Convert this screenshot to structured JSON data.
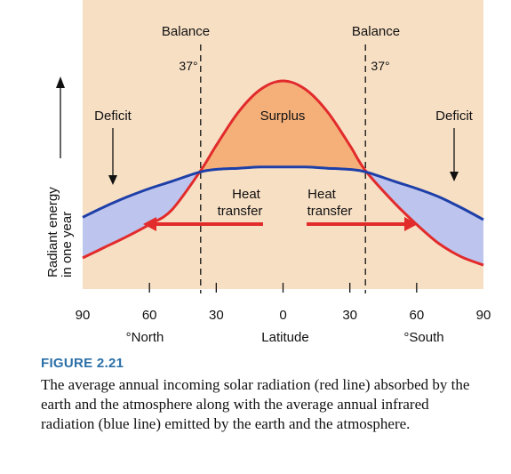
{
  "chart_data": {
    "type": "line",
    "x_axis": {
      "label": "Latitude",
      "tick_labels": [
        "90",
        "60",
        "30",
        "0",
        "30",
        "60",
        "90"
      ],
      "tick_values": [
        -90,
        -60,
        -30,
        0,
        30,
        60,
        90
      ],
      "direction_labels": [
        "°North",
        "°South"
      ]
    },
    "y_axis": {
      "label_line1": "Radiant energy",
      "label_line2": "in one year",
      "ticks": "none"
    },
    "series": [
      {
        "color": "#e22b2b",
        "x": [
          -90,
          -80,
          -70,
          -60,
          -50,
          -37,
          -30,
          -20,
          -10,
          0,
          10,
          20,
          30,
          37,
          50,
          60,
          70,
          80,
          90
        ],
        "y": [
          13,
          17.5,
          22,
          27,
          33,
          49.5,
          60,
          74,
          83.5,
          87,
          83.5,
          74,
          60,
          49.5,
          36,
          27,
          19,
          13.5,
          10
        ]
      },
      {
        "color": "#1e3fa8",
        "x": [
          -90,
          -80,
          -70,
          -60,
          -50,
          -37,
          -30,
          -20,
          -10,
          0,
          10,
          20,
          30,
          37,
          50,
          60,
          70,
          80,
          90
        ],
        "y": [
          30,
          34.5,
          38.5,
          42,
          45,
          49,
          50,
          50.5,
          51,
          51,
          51,
          50.5,
          50,
          49,
          45,
          42,
          38.5,
          34,
          29
        ]
      }
    ],
    "region_labels": {
      "balance_left": "Balance",
      "balance_right": "Balance",
      "lat_left": "37°",
      "lat_right": "37°",
      "deficit_left": "Deficit",
      "deficit_right": "Deficit",
      "surplus": "Surplus"
    },
    "balance_latitude": 37,
    "heat_transfer": {
      "left_line1": "Heat",
      "left_line2": "transfer",
      "right_line1": "Heat",
      "right_line2": "transfer"
    },
    "colors": {
      "background": "#f7dfc4",
      "surplus_fill": "#f5b07a",
      "deficit_fill": "#bdc5ee",
      "arrow": "#e22b2b"
    },
    "grid": false
  },
  "caption": {
    "figure_label": "FIGURE 2.21",
    "text": "The average annual incoming solar radiation (red line) absorbed by the earth and the atmosphere along with the average annual infrared radiation (blue line) emitted by the earth and the atmosphere."
  }
}
